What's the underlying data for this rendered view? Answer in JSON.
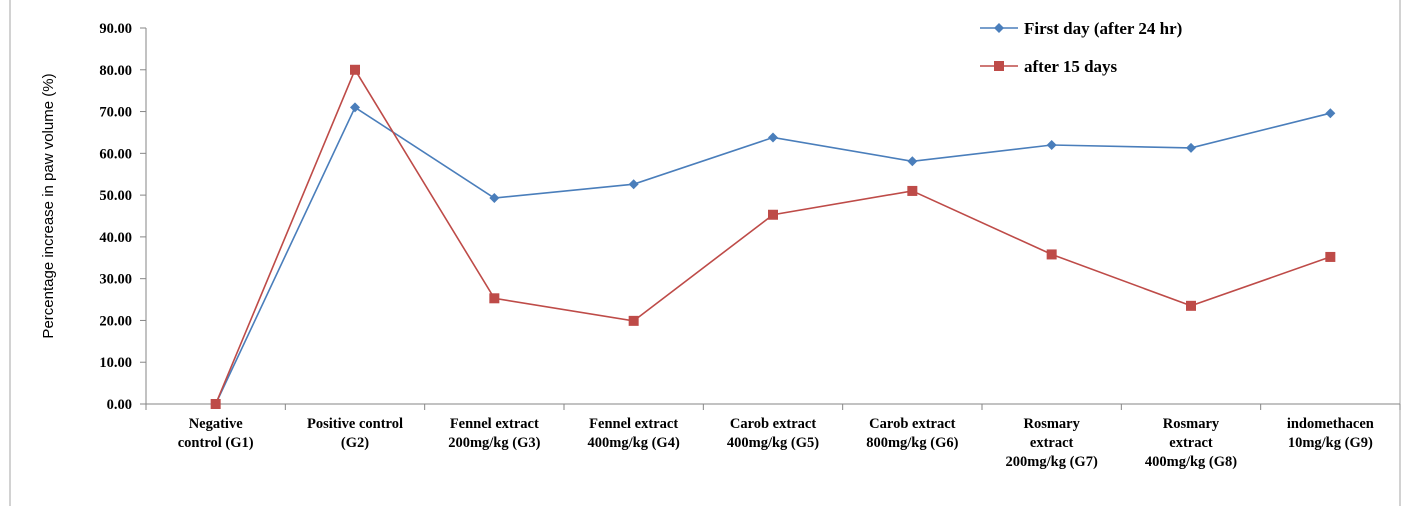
{
  "chart_data": {
    "type": "line",
    "title": "",
    "xlabel": "",
    "ylabel": "Percentage increase in paw volume (%)",
    "ylim": [
      0,
      90
    ],
    "yticks": [
      "0.00",
      "10.00",
      "20.00",
      "30.00",
      "40.00",
      "50.00",
      "60.00",
      "70.00",
      "80.00",
      "90.00"
    ],
    "grid": false,
    "legend_position": "top-right",
    "categories": [
      [
        "Negative",
        "control (G1)"
      ],
      [
        "Positive control",
        "(G2)"
      ],
      [
        "Fennel extract",
        "200mg/kg (G3)"
      ],
      [
        "Fennel extract",
        "400mg/kg (G4)"
      ],
      [
        "Carob extract",
        "400mg/kg (G5)"
      ],
      [
        "Carob extract",
        "800mg/kg (G6)"
      ],
      [
        "Rosmary",
        "extract",
        "200mg/kg (G7)"
      ],
      [
        "Rosmary",
        "extract",
        "400mg/kg (G8)"
      ],
      [
        "indomethacen",
        "10mg/kg (G9)"
      ]
    ],
    "series": [
      {
        "name": "First day (after 24 hr)",
        "color": "#4a7ebb",
        "marker": "diamond",
        "values": [
          0.0,
          71.0,
          49.3,
          52.6,
          63.8,
          58.1,
          62.0,
          61.3,
          69.6
        ]
      },
      {
        "name": "after 15 days",
        "color": "#be4b48",
        "marker": "square",
        "values": [
          0.0,
          80.0,
          25.3,
          19.9,
          45.3,
          51.0,
          35.8,
          23.5,
          35.2
        ]
      }
    ]
  }
}
